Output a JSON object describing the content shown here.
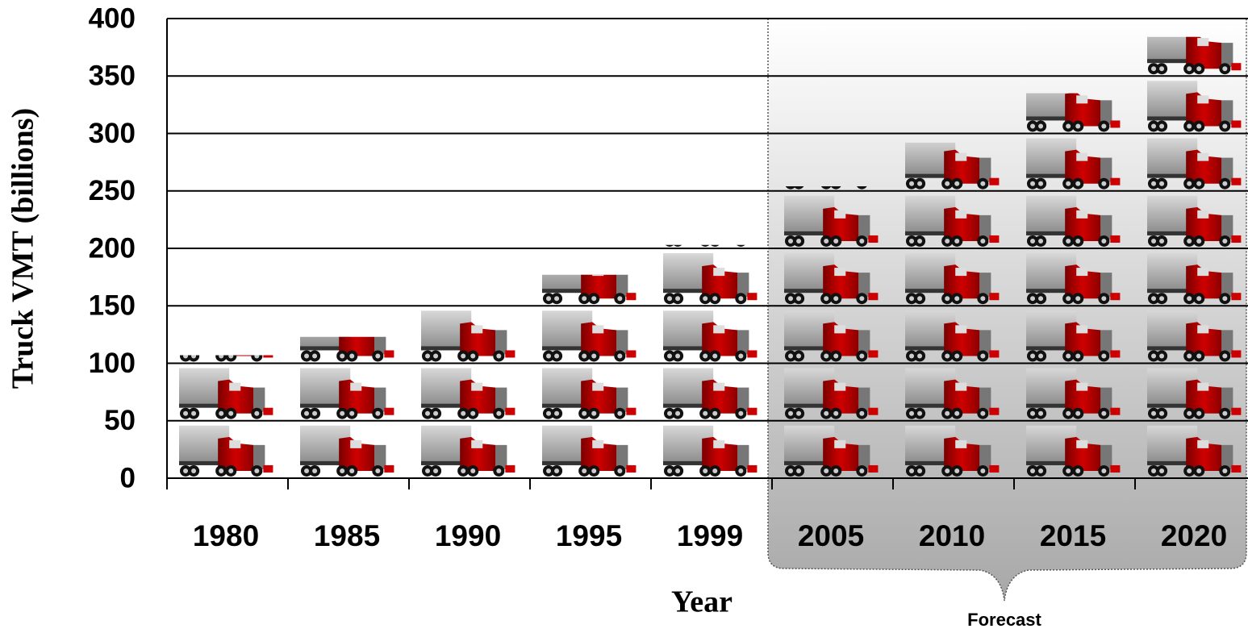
{
  "chart_data": {
    "type": "pictograph",
    "y_label": "Truck VMT (billions)",
    "x_label": "Year",
    "categories": [
      "1980",
      "1985",
      "1990",
      "1995",
      "1999",
      "2005",
      "2010",
      "2015",
      "2020"
    ],
    "values": [
      107,
      123,
      147,
      177,
      203,
      254,
      292,
      335,
      384
    ],
    "unit_per_icon": 50,
    "ylim": [
      0,
      400
    ],
    "yticks": [
      0,
      50,
      100,
      150,
      200,
      250,
      300,
      350,
      400
    ],
    "grid": true,
    "forecast": {
      "label": "Forecast",
      "start": "2005"
    }
  }
}
